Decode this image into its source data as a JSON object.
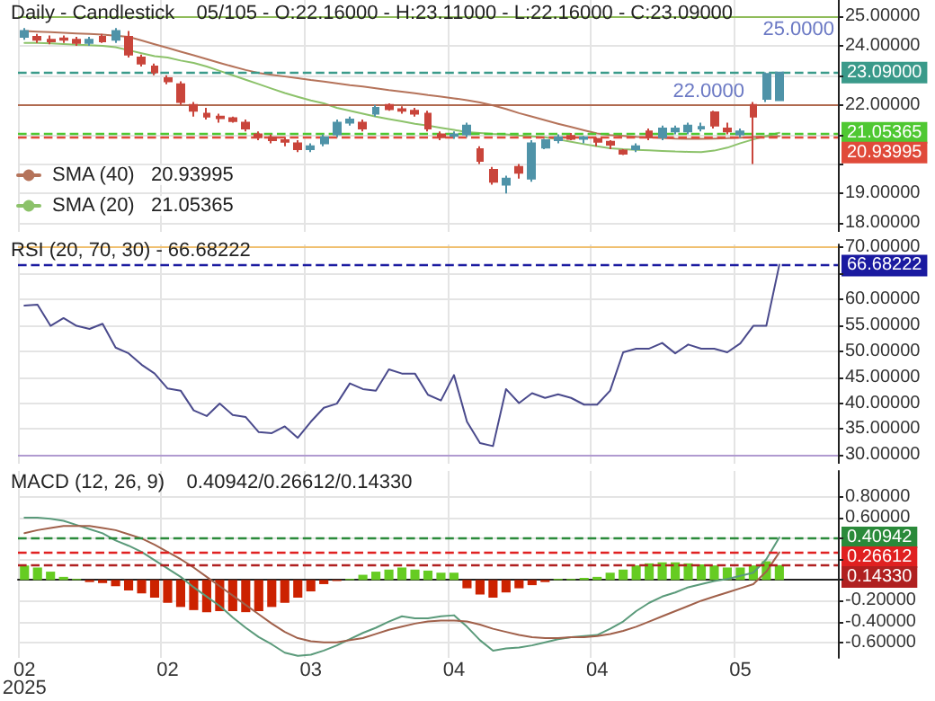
{
  "chart_data": [
    {
      "type": "candlestick",
      "title": "Daily - Candlestick    05/105 - O:22.16000 - H:23.11000 - L:22.16000 - C:23.09000",
      "categories": [
        null,
        null,
        null,
        null,
        null,
        null,
        null,
        null,
        null,
        null,
        null,
        null,
        null,
        null,
        null,
        null,
        null,
        null,
        null,
        null,
        null,
        null,
        null,
        null,
        null,
        null,
        null,
        null,
        null,
        null,
        null,
        null,
        null,
        null,
        null,
        null,
        null,
        null,
        null,
        null,
        null,
        null,
        null,
        null,
        null,
        null,
        null,
        null,
        null,
        null,
        null,
        null,
        null,
        null,
        null,
        null,
        null,
        null,
        null,
        null,
        null,
        null,
        null
      ],
      "ohlc": [
        [
          24.3,
          24.6,
          24.2,
          24.5
        ],
        [
          24.3,
          24.4,
          24.1,
          24.2
        ],
        [
          24.2,
          24.35,
          24.05,
          24.15
        ],
        [
          24.25,
          24.35,
          24.1,
          24.2
        ],
        [
          24.2,
          24.3,
          24.0,
          24.1
        ],
        [
          24.1,
          24.3,
          24.0,
          24.2
        ],
        [
          24.3,
          24.4,
          24.1,
          24.15
        ],
        [
          24.2,
          24.6,
          24.1,
          24.5
        ],
        [
          24.3,
          24.5,
          23.6,
          23.7
        ],
        [
          23.6,
          23.7,
          23.3,
          23.4
        ],
        [
          23.3,
          23.4,
          23.0,
          23.1
        ],
        [
          22.9,
          23.0,
          22.7,
          22.8
        ],
        [
          22.7,
          22.8,
          22.0,
          22.1
        ],
        [
          22.0,
          22.1,
          21.6,
          21.8
        ],
        [
          21.7,
          21.9,
          21.5,
          21.6
        ],
        [
          21.6,
          21.7,
          21.4,
          21.55
        ],
        [
          21.55,
          21.6,
          21.4,
          21.45
        ],
        [
          21.4,
          21.5,
          21.1,
          21.2
        ],
        [
          21.0,
          21.1,
          20.8,
          20.9
        ],
        [
          20.9,
          21.0,
          20.7,
          20.8
        ],
        [
          20.8,
          20.9,
          20.6,
          20.75
        ],
        [
          20.7,
          20.8,
          20.4,
          20.5
        ],
        [
          20.5,
          20.7,
          20.4,
          20.6
        ],
        [
          20.7,
          21.0,
          20.6,
          20.9
        ],
        [
          21.0,
          21.5,
          20.9,
          21.4
        ],
        [
          21.4,
          21.6,
          21.3,
          21.5
        ],
        [
          21.4,
          21.5,
          21.1,
          21.2
        ],
        [
          21.7,
          22.0,
          21.6,
          21.9
        ],
        [
          22.0,
          22.05,
          21.8,
          21.85
        ],
        [
          21.85,
          21.95,
          21.7,
          21.8
        ],
        [
          21.8,
          21.9,
          21.6,
          21.7
        ],
        [
          21.7,
          21.8,
          21.1,
          21.2
        ],
        [
          21.0,
          21.1,
          20.8,
          20.9
        ],
        [
          20.95,
          21.1,
          20.85,
          21.0
        ],
        [
          21.0,
          21.4,
          20.9,
          21.3
        ],
        [
          20.5,
          20.6,
          20.0,
          20.1
        ],
        [
          19.8,
          19.9,
          19.3,
          19.4
        ],
        [
          19.3,
          19.6,
          19.0,
          19.5
        ],
        [
          19.9,
          20.0,
          19.5,
          19.7
        ],
        [
          19.5,
          20.8,
          19.4,
          20.7
        ],
        [
          20.55,
          20.85,
          20.5,
          20.8
        ],
        [
          20.8,
          21.0,
          20.7,
          20.9
        ],
        [
          20.95,
          21.05,
          20.8,
          20.85
        ],
        [
          20.85,
          20.95,
          20.7,
          20.9
        ],
        [
          20.85,
          20.9,
          20.6,
          20.75
        ],
        [
          20.75,
          20.8,
          20.5,
          20.65
        ],
        [
          20.45,
          20.5,
          20.3,
          20.35
        ],
        [
          20.5,
          20.7,
          20.4,
          20.6
        ],
        [
          21.1,
          21.2,
          20.8,
          20.9
        ],
        [
          20.9,
          21.3,
          20.8,
          21.2
        ],
        [
          21.1,
          21.3,
          21.0,
          21.2
        ],
        [
          21.1,
          21.4,
          21.0,
          21.3
        ],
        [
          21.2,
          21.4,
          21.1,
          21.25
        ],
        [
          21.75,
          21.8,
          21.2,
          21.3
        ],
        [
          21.2,
          21.4,
          21.0,
          21.1
        ],
        [
          21.0,
          21.2,
          20.9,
          21.1
        ],
        [
          22.0,
          22.1,
          20.0,
          21.6
        ],
        [
          22.2,
          23.1,
          22.1,
          23.05
        ],
        [
          22.16,
          23.11,
          22.16,
          23.09
        ],
        null,
        null,
        null,
        null
      ],
      "colors": [
        "#4f93a8",
        "#c9453b",
        "#c9453b",
        "#c9453b",
        "#c9453b",
        "#4f93a8",
        "#c9453b",
        "#4f93a8",
        "#c9453b",
        "#c9453b",
        "#c9453b",
        "#c9453b",
        "#c9453b",
        "#c9453b",
        "#c9453b",
        "#c9453b",
        "#c9453b",
        "#c9453b",
        "#c9453b",
        "#c9453b",
        "#c9453b",
        "#c9453b",
        "#4f93a8",
        "#4f93a8",
        "#4f93a8",
        "#4f93a8",
        "#c9453b",
        "#4f93a8",
        "#c9453b",
        "#c9453b",
        "#c9453b",
        "#c9453b",
        "#c9453b",
        "#4f93a8",
        "#4f93a8",
        "#c9453b",
        "#c9453b",
        "#4f93a8",
        "#c9453b",
        "#4f93a8",
        "#4f93a8",
        "#4f93a8",
        "#c9453b",
        "#4f93a8",
        "#c9453b",
        "#c9453b",
        "#c9453b",
        "#4f93a8",
        "#c9453b",
        "#4f93a8",
        "#4f93a8",
        "#4f93a8",
        "#4f93a8",
        "#c9453b",
        "#c9453b",
        "#4f93a8",
        "#c9453b",
        "#4f93a8",
        "#4f93a8",
        null,
        null,
        null,
        null
      ],
      "series": [
        {
          "type": "line",
          "name": "SMA (40)   20.93995",
          "color": "#b5735a",
          "values": [
            24.5,
            24.48,
            24.46,
            24.44,
            24.42,
            24.4,
            24.38,
            24.34,
            24.3,
            24.18,
            24.05,
            23.93,
            23.8,
            23.68,
            23.55,
            23.42,
            23.3,
            23.18,
            23.08,
            23.02,
            22.96,
            22.9,
            22.84,
            22.79,
            22.73,
            22.67,
            22.62,
            22.56,
            22.5,
            22.45,
            22.39,
            22.33,
            22.28,
            22.22,
            22.16,
            22.08,
            21.98,
            21.86,
            21.72,
            21.6,
            21.48,
            21.36,
            21.25,
            21.14,
            21.03,
            20.98,
            20.95,
            20.92,
            20.9,
            20.88,
            20.86,
            20.85,
            20.85,
            20.86,
            20.87,
            20.89,
            20.91,
            20.93,
            20.93995,
            null,
            null,
            null,
            null
          ]
        },
        {
          "type": "line",
          "name": "SMA (20)   21.05365",
          "color": "#8cc26a",
          "values": [
            24.1,
            24.1,
            24.08,
            24.06,
            24.04,
            24.02,
            24.0,
            23.95,
            23.85,
            23.75,
            23.65,
            23.6,
            23.5,
            23.42,
            23.3,
            23.15,
            23.0,
            22.85,
            22.7,
            22.55,
            22.4,
            22.27,
            22.15,
            22.05,
            21.9,
            21.8,
            21.7,
            21.6,
            21.52,
            21.44,
            21.36,
            21.3,
            21.22,
            21.15,
            21.08,
            21.05,
            21.02,
            21.0,
            20.96,
            20.93,
            20.9,
            20.83,
            20.75,
            20.67,
            20.6,
            20.53,
            20.5,
            20.48,
            20.46,
            20.44,
            20.42,
            20.41,
            20.4,
            20.45,
            20.55,
            20.7,
            20.83,
            20.95,
            21.05365,
            null,
            null,
            null,
            null
          ]
        }
      ],
      "ylim": [
        17.7,
        25.55
      ],
      "yticks": [
        {
          "value": 18,
          "label": "18.00000"
        },
        {
          "value": 19,
          "label": "19.00000"
        },
        {
          "value": 20,
          "label": null
        },
        {
          "value": 21,
          "label": null
        },
        {
          "value": 22,
          "label": "22.00000"
        },
        {
          "value": 23,
          "label": null
        },
        {
          "value": 24,
          "label": "24.00000"
        },
        {
          "value": 25,
          "label": "25.00000"
        }
      ],
      "ref_lines": [
        {
          "axis": "y",
          "value": 25,
          "label": "25.0000",
          "color": "#8fbc5a",
          "line_style": "solid"
        },
        {
          "axis": "y",
          "value": 22,
          "label": "22.0000",
          "color": "#b06a50",
          "line_style": "solid"
        },
        {
          "axis": "y",
          "value": 23.09,
          "label": "23.09000",
          "color": "#3a9a8a",
          "line_style": "dashed"
        },
        {
          "axis": "y",
          "value": 21.05365,
          "label": "21.05365",
          "color": "#4fc832",
          "line_style": "dashed"
        },
        {
          "axis": "y",
          "value": 20.93995,
          "label": "20.93995",
          "color": "#e04a3a",
          "line_style": "dashed"
        }
      ],
      "grid": true,
      "legend": "bottom left",
      "tick_labels": "y"
    },
    {
      "type": "line",
      "title": "RSI (20, 70, 30) - 66.68222",
      "categories": [
        null,
        null,
        null,
        null,
        null,
        null,
        null,
        null,
        null,
        null,
        null,
        null,
        null,
        null,
        null,
        null,
        null,
        null,
        null,
        null,
        null,
        null,
        null,
        null,
        null,
        null,
        null,
        null,
        null,
        null,
        null,
        null,
        null,
        null,
        null,
        null,
        null,
        null,
        null,
        null,
        null,
        null,
        null,
        null,
        null,
        null,
        null,
        null,
        null,
        null,
        null,
        null,
        null,
        null,
        null,
        null,
        null,
        null,
        null,
        null,
        null,
        null,
        null
      ],
      "series": [
        {
          "color": "#4a4a8c",
          "values": [
            58.8,
            59.0,
            54.9,
            56.4,
            54.9,
            54.3,
            55.3,
            50.7,
            49.6,
            47.4,
            45.7,
            42.8,
            42.4,
            38.6,
            37.5,
            39.9,
            37.7,
            37.3,
            34.4,
            34.2,
            35.5,
            33.3,
            36.4,
            39.1,
            39.9,
            43.8,
            42.7,
            42.4,
            46.5,
            45.7,
            45.7,
            41.6,
            40.5,
            45.4,
            36.4,
            32.3,
            31.7,
            42.7,
            40.0,
            41.9,
            41.0,
            41.7,
            41.0,
            39.7,
            39.7,
            42.4,
            49.8,
            50.5,
            50.5,
            51.6,
            49.6,
            51.3,
            50.5,
            50.5,
            49.8,
            51.5,
            54.9,
            54.9,
            66.68222,
            null,
            null,
            null,
            null
          ]
        }
      ],
      "ylim": [
        28.3,
        70.6
      ],
      "yticks": [
        {
          "value": 30,
          "label": "30.00000"
        },
        {
          "value": 35,
          "label": "35.00000"
        },
        {
          "value": 40,
          "label": "40.00000"
        },
        {
          "value": 45,
          "label": "45.00000"
        },
        {
          "value": 50,
          "label": "50.00000"
        },
        {
          "value": 55,
          "label": "55.00000"
        },
        {
          "value": 60,
          "label": "60.00000"
        },
        {
          "value": 65,
          "label": null
        },
        {
          "value": 70,
          "label": "70.00000"
        }
      ],
      "ref_lines": [
        {
          "axis": "y",
          "value": 70,
          "color": "#f0c070",
          "line_style": "solid"
        },
        {
          "axis": "y",
          "value": 30,
          "color": "#b09ad0",
          "line_style": "solid"
        },
        {
          "axis": "y",
          "value": 66.68222,
          "label": "66.68222",
          "color": "#1a1aa0",
          "line_style": "dashed"
        }
      ],
      "grid": true,
      "tick_labels": "y"
    },
    {
      "type": "bar",
      "title": "MACD (12, 26, 9)    0.40942/0.26612/0.14330",
      "categories": [
        "02\n2025",
        null,
        null,
        null,
        null,
        null,
        null,
        null,
        null,
        null,
        null,
        "02",
        null,
        null,
        null,
        null,
        null,
        null,
        null,
        null,
        null,
        null,
        "03",
        null,
        null,
        null,
        null,
        null,
        null,
        null,
        null,
        null,
        null,
        "04",
        null,
        null,
        null,
        null,
        null,
        null,
        null,
        null,
        null,
        null,
        "04",
        null,
        null,
        null,
        null,
        null,
        null,
        null,
        null,
        null,
        null,
        "05",
        null,
        null,
        null,
        null,
        null,
        null,
        null
      ],
      "series": [
        {
          "type": "bar",
          "values": [
            0.14,
            0.12,
            0.08,
            0.03,
            0.01,
            -0.02,
            -0.03,
            -0.06,
            -0.1,
            -0.13,
            -0.17,
            -0.22,
            -0.26,
            -0.29,
            -0.31,
            -0.3,
            -0.3,
            -0.31,
            -0.3,
            -0.26,
            -0.22,
            -0.17,
            -0.11,
            -0.04,
            -0.01,
            0.01,
            0.05,
            0.08,
            0.1,
            0.12,
            0.1,
            0.09,
            0.07,
            0.07,
            -0.08,
            -0.14,
            -0.17,
            -0.12,
            -0.08,
            -0.05,
            -0.02,
            0.01,
            0.01,
            0.02,
            0.03,
            0.07,
            0.1,
            0.14,
            0.16,
            0.17,
            0.17,
            0.16,
            0.15,
            0.14,
            0.12,
            0.12,
            0.14,
            0.18,
            0.1433,
            null,
            null,
            null,
            null
          ],
          "colors": [
            "#66cc22",
            "#66cc22",
            "#66cc22",
            "#66cc22",
            "#66cc22",
            "#cc2200",
            "#cc2200",
            "#cc2200",
            "#cc2200",
            "#cc2200",
            "#cc2200",
            "#cc2200",
            "#cc2200",
            "#cc2200",
            "#cc2200",
            "#cc2200",
            "#cc2200",
            "#cc2200",
            "#cc2200",
            "#cc2200",
            "#cc2200",
            "#cc2200",
            "#cc2200",
            "#cc2200",
            "#cc2200",
            "#66cc22",
            "#66cc22",
            "#66cc22",
            "#66cc22",
            "#66cc22",
            "#66cc22",
            "#66cc22",
            "#66cc22",
            "#66cc22",
            "#cc2200",
            "#cc2200",
            "#cc2200",
            "#cc2200",
            "#cc2200",
            "#cc2200",
            "#cc2200",
            "#66cc22",
            "#66cc22",
            "#66cc22",
            "#66cc22",
            "#66cc22",
            "#66cc22",
            "#66cc22",
            "#66cc22",
            "#66cc22",
            "#66cc22",
            "#66cc22",
            "#66cc22",
            "#66cc22",
            "#66cc22",
            "#66cc22",
            "#66cc22",
            "#66cc22",
            "#66cc22",
            null,
            null,
            null,
            null
          ]
        },
        {
          "type": "line",
          "color": "#5a9a7a",
          "values": [
            0.6,
            0.6,
            0.59,
            0.57,
            0.53,
            0.49,
            0.45,
            0.38,
            0.33,
            0.27,
            0.19,
            0.11,
            0.03,
            -0.07,
            -0.16,
            -0.25,
            -0.36,
            -0.46,
            -0.55,
            -0.62,
            -0.7,
            -0.73,
            -0.72,
            -0.68,
            -0.63,
            -0.57,
            -0.51,
            -0.46,
            -0.4,
            -0.35,
            -0.37,
            -0.37,
            -0.35,
            -0.34,
            -0.45,
            -0.58,
            -0.68,
            -0.66,
            -0.65,
            -0.63,
            -0.6,
            -0.57,
            -0.55,
            -0.54,
            -0.53,
            -0.47,
            -0.4,
            -0.3,
            -0.22,
            -0.16,
            -0.12,
            -0.07,
            -0.04,
            -0.01,
            0.01,
            0.04,
            0.07,
            0.2,
            0.40942,
            null,
            null,
            null,
            null
          ]
        },
        {
          "type": "line",
          "color": "#a0604a",
          "values": [
            0.45,
            0.48,
            0.5,
            0.52,
            0.52,
            0.52,
            0.5,
            0.48,
            0.44,
            0.4,
            0.34,
            0.27,
            0.2,
            0.12,
            0.03,
            -0.06,
            -0.15,
            -0.24,
            -0.33,
            -0.42,
            -0.5,
            -0.56,
            -0.59,
            -0.6,
            -0.6,
            -0.58,
            -0.56,
            -0.52,
            -0.48,
            -0.45,
            -0.42,
            -0.4,
            -0.39,
            -0.39,
            -0.4,
            -0.43,
            -0.47,
            -0.5,
            -0.53,
            -0.55,
            -0.56,
            -0.56,
            -0.55,
            -0.55,
            -0.54,
            -0.52,
            -0.49,
            -0.45,
            -0.4,
            -0.35,
            -0.3,
            -0.25,
            -0.2,
            -0.16,
            -0.12,
            -0.08,
            -0.04,
            0.08,
            0.26612,
            null,
            null,
            null,
            null
          ]
        }
      ],
      "ylim": [
        -0.75,
        1.05
      ],
      "yticks": [
        {
          "value": -0.6,
          "label": "-0.60000"
        },
        {
          "value": -0.4,
          "label": "-0.40000"
        },
        {
          "value": -0.2,
          "label": "-0.20000"
        },
        {
          "value": 0,
          "label": null
        },
        {
          "value": 0.2,
          "label": null
        },
        {
          "value": 0.4,
          "label": null
        },
        {
          "value": 0.6,
          "label": "0.60000"
        },
        {
          "value": 0.8,
          "label": "0.80000"
        }
      ],
      "ref_lines": [
        {
          "axis": "y",
          "value": 0.40942,
          "label": "0.40942",
          "color": "#2a8a3a",
          "line_style": "dashed"
        },
        {
          "axis": "y",
          "value": 0.26612,
          "label": "0.26612",
          "color": "#e02020",
          "line_style": "dashed"
        },
        {
          "axis": "y",
          "value": 0.1433,
          "label": "0.14330",
          "color": "#b02020",
          "line_style": "dashed"
        }
      ],
      "grid": true
    }
  ]
}
